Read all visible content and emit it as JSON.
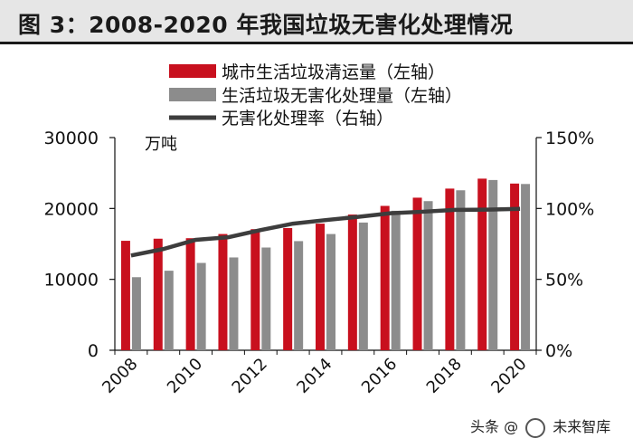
{
  "title": "图 3：2008-2020 年我国垃圾无害化处理情况",
  "colors": {
    "collection": "#c8101e",
    "treatment": "#8c8c8c",
    "rate": "#3d3d3d",
    "title_bg": "#e6e6e6"
  },
  "chart_data": {
    "type": "bar",
    "categories": [
      "2008",
      "2009",
      "2010",
      "2011",
      "2012",
      "2013",
      "2014",
      "2015",
      "2016",
      "2017",
      "2018",
      "2019",
      "2020"
    ],
    "x_tick_labels": [
      "2008",
      "2010",
      "2012",
      "2014",
      "2016",
      "2018",
      "2020"
    ],
    "series": [
      {
        "name": "城市生活垃圾清运量（左轴）",
        "kind": "bar",
        "axis": "left",
        "values": [
          15438,
          15734,
          15805,
          16395,
          17081,
          17239,
          17860,
          19142,
          20362,
          21521,
          22802,
          24206,
          23512
        ]
      },
      {
        "name": "生活垃圾无害化处理量（左轴）",
        "kind": "bar",
        "axis": "left",
        "values": [
          10307,
          11220,
          12318,
          13090,
          14490,
          15394,
          16394,
          18013,
          19674,
          21034,
          22565,
          24013,
          23452
        ]
      },
      {
        "name": "无害化处理率（右轴）",
        "kind": "line",
        "axis": "right",
        "values": [
          66.8,
          71.4,
          77.9,
          79.7,
          84.8,
          89.3,
          91.8,
          94.1,
          96.6,
          97.7,
          99.0,
          99.2,
          99.7
        ]
      }
    ],
    "unit_label": "万吨",
    "y_left": {
      "min": 0,
      "max": 30000,
      "ticks": [
        0,
        10000,
        20000,
        30000
      ]
    },
    "y_right": {
      "min": 0,
      "max": 150,
      "ticks": [
        "0%",
        "50%",
        "100%",
        "150%"
      ]
    }
  },
  "watermark": {
    "prefix": "头条",
    "at": "@",
    "name": "未来智库"
  }
}
